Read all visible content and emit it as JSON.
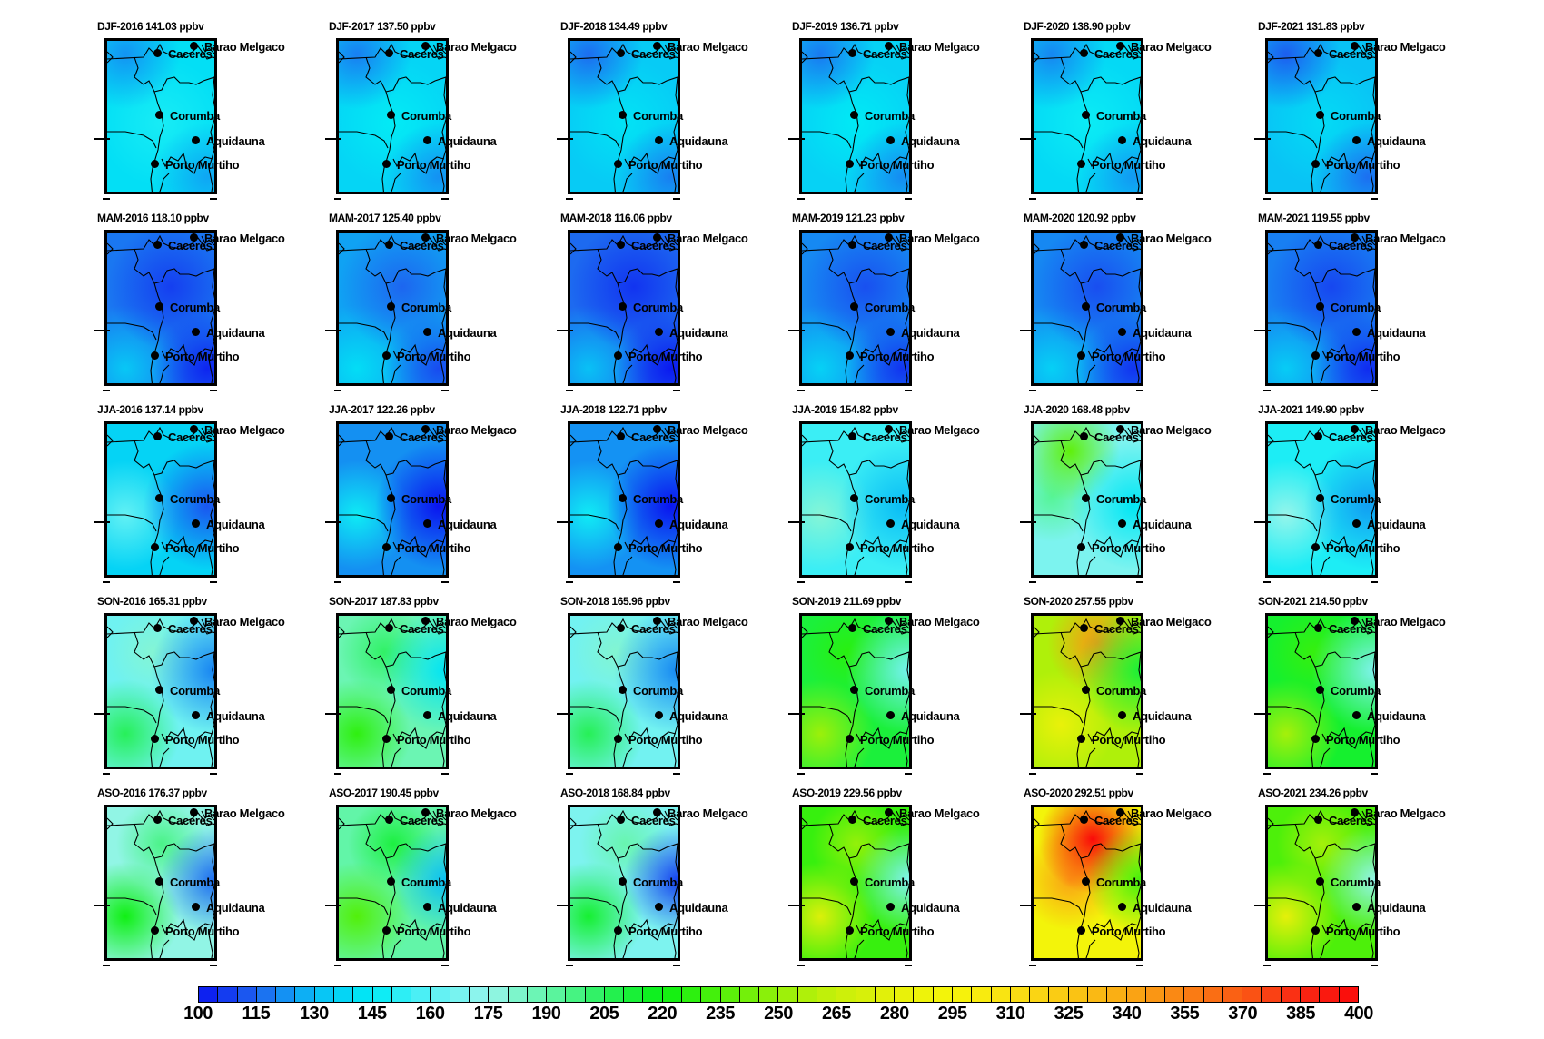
{
  "chart_data": {
    "type": "heatmap",
    "title": "",
    "units": "ppbv",
    "layout": {
      "rows": 5,
      "cols": 6,
      "row_labels": [
        "DJF",
        "MAM",
        "JJA",
        "SON",
        "ASO"
      ],
      "col_labels": [
        "2016",
        "2017",
        "2018",
        "2019",
        "2020",
        "2021"
      ]
    },
    "cities": [
      "Barao Melgaco",
      "Caceres",
      "Corumba",
      "Aquidauna",
      "Porto Murtiho"
    ],
    "panels": [
      {
        "title": "DJF-2016 141.03 ppbv",
        "season": "DJF",
        "year": 2016,
        "mean": 141.03
      },
      {
        "title": "DJF-2017 137.50 ppbv",
        "season": "DJF",
        "year": 2017,
        "mean": 137.5
      },
      {
        "title": "DJF-2018 134.49 ppbv",
        "season": "DJF",
        "year": 2018,
        "mean": 134.49
      },
      {
        "title": "DJF-2019 136.71 ppbv",
        "season": "DJF",
        "year": 2019,
        "mean": 136.71
      },
      {
        "title": "DJF-2020 138.90 ppbv",
        "season": "DJF",
        "year": 2020,
        "mean": 138.9
      },
      {
        "title": "DJF-2021 131.83 ppbv",
        "season": "DJF",
        "year": 2021,
        "mean": 131.83
      },
      {
        "title": "MAM-2016 118.10 ppbv",
        "season": "MAM",
        "year": 2016,
        "mean": 118.1
      },
      {
        "title": "MAM-2017 125.40 ppbv",
        "season": "MAM",
        "year": 2017,
        "mean": 125.4
      },
      {
        "title": "MAM-2018 116.06 ppbv",
        "season": "MAM",
        "year": 2018,
        "mean": 116.06
      },
      {
        "title": "MAM-2019 121.23 ppbv",
        "season": "MAM",
        "year": 2019,
        "mean": 121.23
      },
      {
        "title": "MAM-2020 120.92 ppbv",
        "season": "MAM",
        "year": 2020,
        "mean": 120.92
      },
      {
        "title": "MAM-2021 119.55 ppbv",
        "season": "MAM",
        "year": 2021,
        "mean": 119.55
      },
      {
        "title": "JJA-2016 137.14 ppbv",
        "season": "JJA",
        "year": 2016,
        "mean": 137.14
      },
      {
        "title": "JJA-2017 122.26 ppbv",
        "season": "JJA",
        "year": 2017,
        "mean": 122.26
      },
      {
        "title": "JJA-2018 122.71 ppbv",
        "season": "JJA",
        "year": 2018,
        "mean": 122.71
      },
      {
        "title": "JJA-2019 154.82 ppbv",
        "season": "JJA",
        "year": 2019,
        "mean": 154.82
      },
      {
        "title": "JJA-2020 168.48 ppbv",
        "season": "JJA",
        "year": 2020,
        "mean": 168.48
      },
      {
        "title": "JJA-2021 149.90 ppbv",
        "season": "JJA",
        "year": 2021,
        "mean": 149.9
      },
      {
        "title": "SON-2016 165.31 ppbv",
        "season": "SON",
        "year": 2016,
        "mean": 165.31
      },
      {
        "title": "SON-2017 187.83 ppbv",
        "season": "SON",
        "year": 2017,
        "mean": 187.83
      },
      {
        "title": "SON-2018 165.96 ppbv",
        "season": "SON",
        "year": 2018,
        "mean": 165.96
      },
      {
        "title": "SON-2019 211.69 ppbv",
        "season": "SON",
        "year": 2019,
        "mean": 211.69
      },
      {
        "title": "SON-2020 257.55 ppbv",
        "season": "SON",
        "year": 2020,
        "mean": 257.55
      },
      {
        "title": "SON-2021 214.50 ppbv",
        "season": "SON",
        "year": 2021,
        "mean": 214.5
      },
      {
        "title": "ASO-2016 176.37 ppbv",
        "season": "ASO",
        "year": 2016,
        "mean": 176.37
      },
      {
        "title": "ASO-2017 190.45 ppbv",
        "season": "ASO",
        "year": 2017,
        "mean": 190.45
      },
      {
        "title": "ASO-2018 168.84 ppbv",
        "season": "ASO",
        "year": 2018,
        "mean": 168.84
      },
      {
        "title": "ASO-2019 229.56 ppbv",
        "season": "ASO",
        "year": 2019,
        "mean": 229.56
      },
      {
        "title": "ASO-2020 292.51 ppbv",
        "season": "ASO",
        "year": 2020,
        "mean": 292.51
      },
      {
        "title": "ASO-2021 234.26 ppbv",
        "season": "ASO",
        "year": 2021,
        "mean": 234.26
      }
    ],
    "colorbar": {
      "min": 100,
      "max": 400,
      "step": 5,
      "tick_labels": [
        "100",
        "115",
        "130",
        "145",
        "160",
        "175",
        "190",
        "205",
        "220",
        "235",
        "250",
        "265",
        "280",
        "295",
        "310",
        "325",
        "340",
        "355",
        "370",
        "385",
        "400"
      ],
      "colors": [
        "#0a14f0",
        "#1432f0",
        "#1e4bf0",
        "#1e64f0",
        "#1e78f0",
        "#1e8cf0",
        "#14aaf5",
        "#0ac8f5",
        "#00e6f5",
        "#1ef0f5",
        "#32f0f5",
        "#46f0f5",
        "#5af0f5",
        "#6ef5f5",
        "#82f5f5",
        "#96f5e6",
        "#82f5c8",
        "#6ef5aa",
        "#5af58c",
        "#3cf06e",
        "#1ef050",
        "#0af032",
        "#00f014",
        "#1ef00a",
        "#32f00a",
        "#50f00a",
        "#6ef00a",
        "#8cf00a",
        "#aaf00a",
        "#c8f00a",
        "#d2f00a",
        "#e1f00a",
        "#f0f00a",
        "#f5f50a",
        "#faf00a",
        "#fae614",
        "#fadc14",
        "#fad214",
        "#fac814",
        "#fabe14",
        "#fab414",
        "#faaa14",
        "#fa9614",
        "#fa8214",
        "#fa7814",
        "#fa6414",
        "#fa5014",
        "#fa4614",
        "#fa3214",
        "#fa1e14",
        "#fa1414",
        "#fa0a0a",
        "#fa0a0a",
        "#fa0a0a",
        "#fa0a0a",
        "#fa0a0a",
        "#fa0a0a",
        "#fa0a0a",
        "#fa0a0a",
        "#fa0a0a"
      ]
    }
  }
}
